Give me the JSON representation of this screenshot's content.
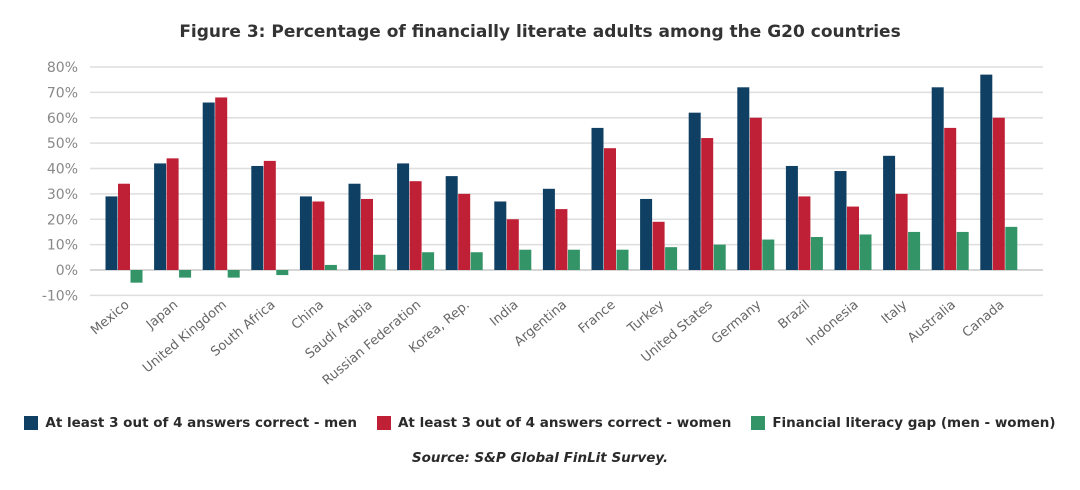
{
  "chart_data": {
    "type": "bar",
    "title": "Figure 3: Percentage of financially literate adults among the G20 countries",
    "xlabel": "",
    "ylabel": "",
    "ylim": [
      -10,
      80
    ],
    "yticks": [
      -10,
      0,
      10,
      20,
      30,
      40,
      50,
      60,
      70,
      80
    ],
    "ytick_labels": [
      "-10%",
      "0%",
      "10%",
      "20%",
      "30%",
      "40%",
      "50%",
      "60%",
      "70%",
      "80%"
    ],
    "grid": true,
    "legend_position": "bottom",
    "categories": [
      "Mexico",
      "Japan",
      "United Kingdom",
      "South Africa",
      "China",
      "Saudi Arabia",
      "Russian Federation",
      "Korea, Rep.",
      "India",
      "Argentina",
      "France",
      "Turkey",
      "United States",
      "Germany",
      "Brazil",
      "Indonesia",
      "Italy",
      "Australia",
      "Canada"
    ],
    "series": [
      {
        "name": "At least 3 out of 4 answers correct - men",
        "color": "#0f3f63",
        "values": [
          29,
          42,
          66,
          41,
          29,
          34,
          42,
          37,
          27,
          32,
          56,
          28,
          62,
          72,
          41,
          39,
          45,
          72,
          77
        ]
      },
      {
        "name": "At least 3 out of 4 answers correct - women",
        "color": "#c02035",
        "values": [
          34,
          44,
          68,
          43,
          27,
          28,
          35,
          30,
          20,
          24,
          48,
          19,
          52,
          60,
          29,
          25,
          30,
          56,
          60
        ]
      },
      {
        "name": "Financial literacy gap (men - women)",
        "color": "#339467",
        "values": [
          -5,
          -3,
          -3,
          -2,
          2,
          6,
          7,
          7,
          8,
          8,
          8,
          9,
          10,
          12,
          13,
          14,
          15,
          15,
          17
        ]
      }
    ],
    "source": "Source: S&P Global FinLit Survey."
  }
}
